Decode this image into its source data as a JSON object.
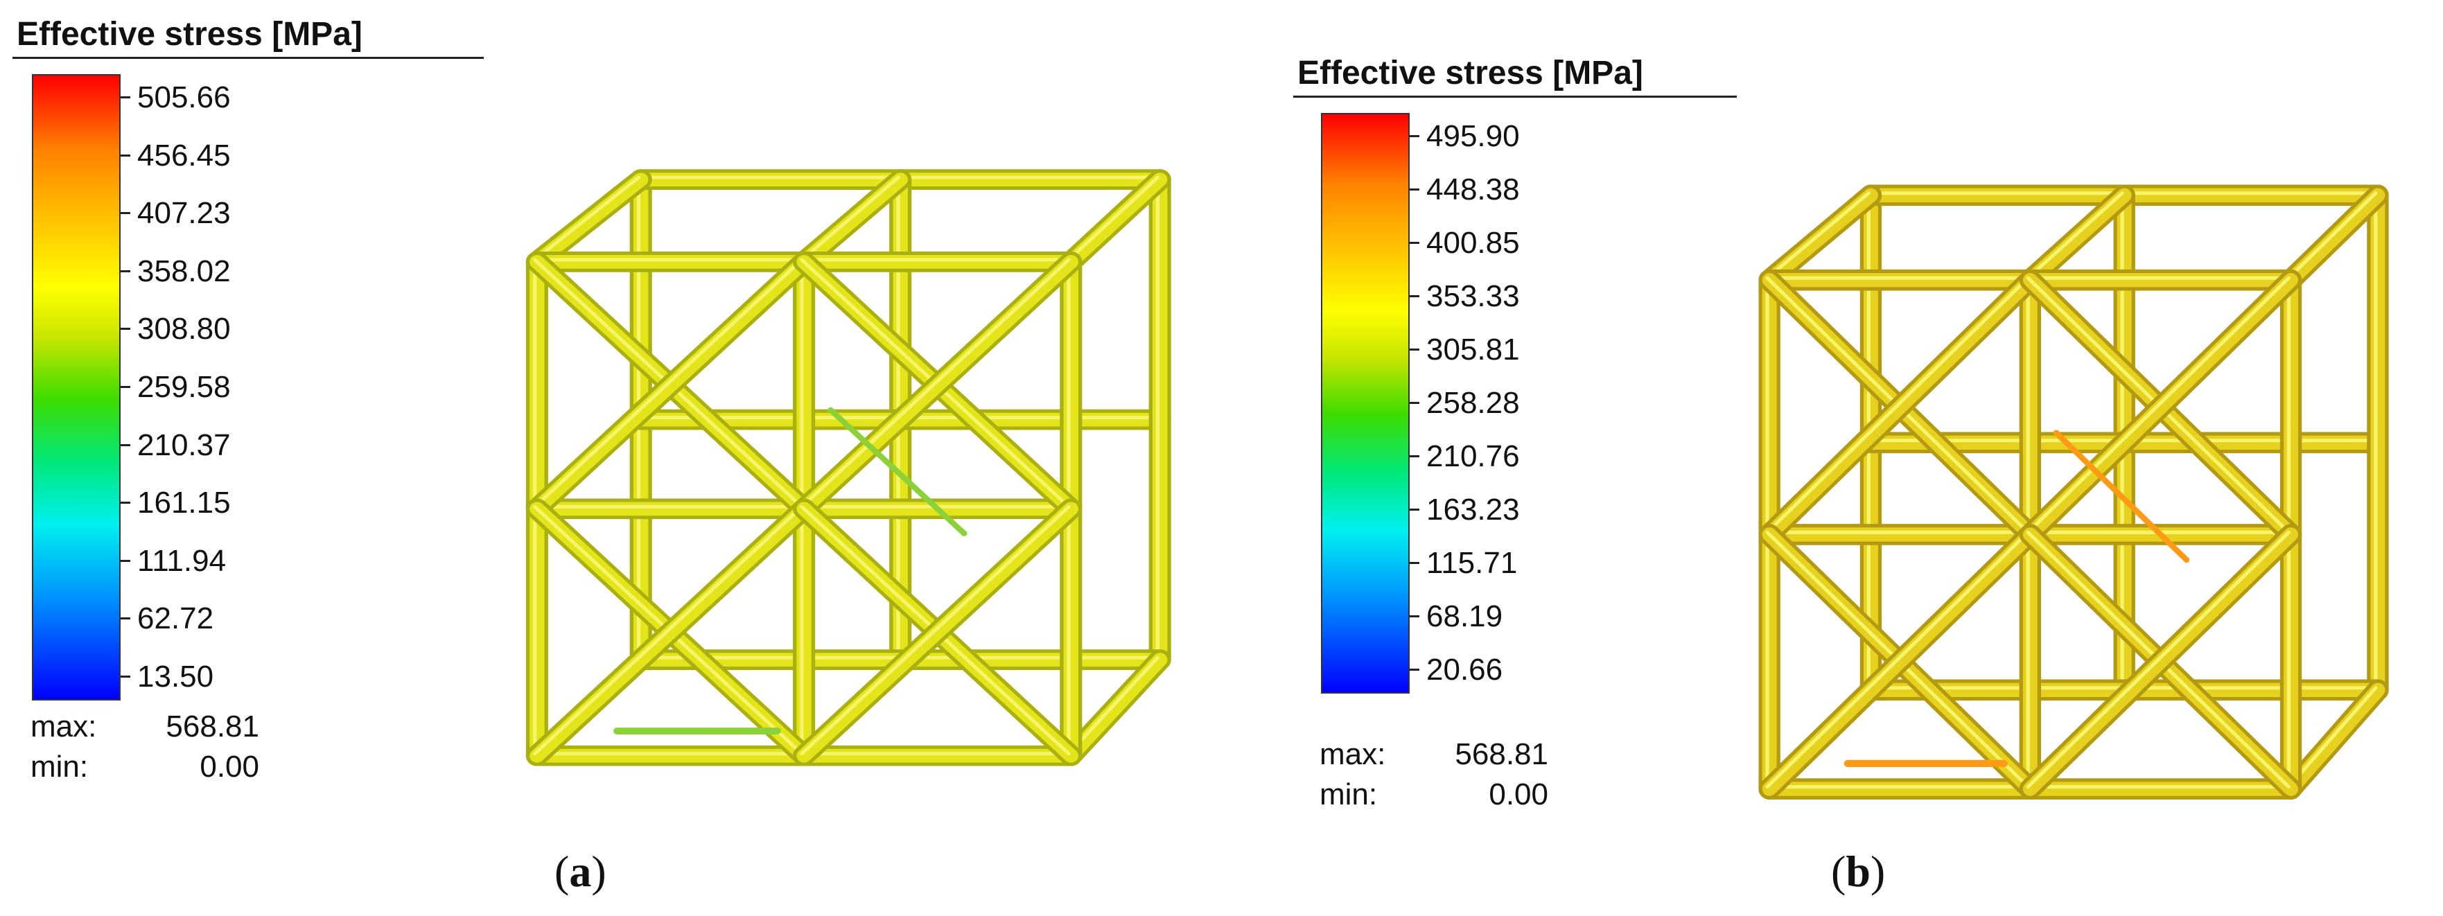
{
  "panels": [
    {
      "id": "a",
      "legend_title": "Effective stress [MPa]",
      "ticks": [
        "505.66",
        "456.45",
        "407.23",
        "358.02",
        "308.80",
        "259.58",
        "210.37",
        "161.15",
        "111.94",
        "62.72",
        "13.50"
      ],
      "max_label": "max:",
      "max_value": "568.81",
      "min_label": "min:",
      "min_value": "0.00",
      "caption_open": "(",
      "caption_letter": "a",
      "caption_close": ")",
      "colors": {
        "strut_main": "#e4e41a",
        "strut_shade": "#a9b010",
        "strut_accent": "#8bd23a"
      }
    },
    {
      "id": "b",
      "legend_title": "Effective stress [MPa]",
      "ticks": [
        "495.90",
        "448.38",
        "400.85",
        "353.33",
        "305.81",
        "258.28",
        "210.76",
        "163.23",
        "115.71",
        "68.19",
        "20.66"
      ],
      "max_label": "max:",
      "max_value": "568.81",
      "min_label": "min:",
      "min_value": "0.00",
      "caption_open": "(",
      "caption_letter": "b",
      "caption_close": ")",
      "colors": {
        "strut_main": "#e6d21e",
        "strut_shade": "#b39a12",
        "strut_accent": "#ff9a14"
      }
    }
  ],
  "colorbar": {
    "low": "#0000ff",
    "mid": "#ffff00",
    "high": "#ff0000"
  }
}
